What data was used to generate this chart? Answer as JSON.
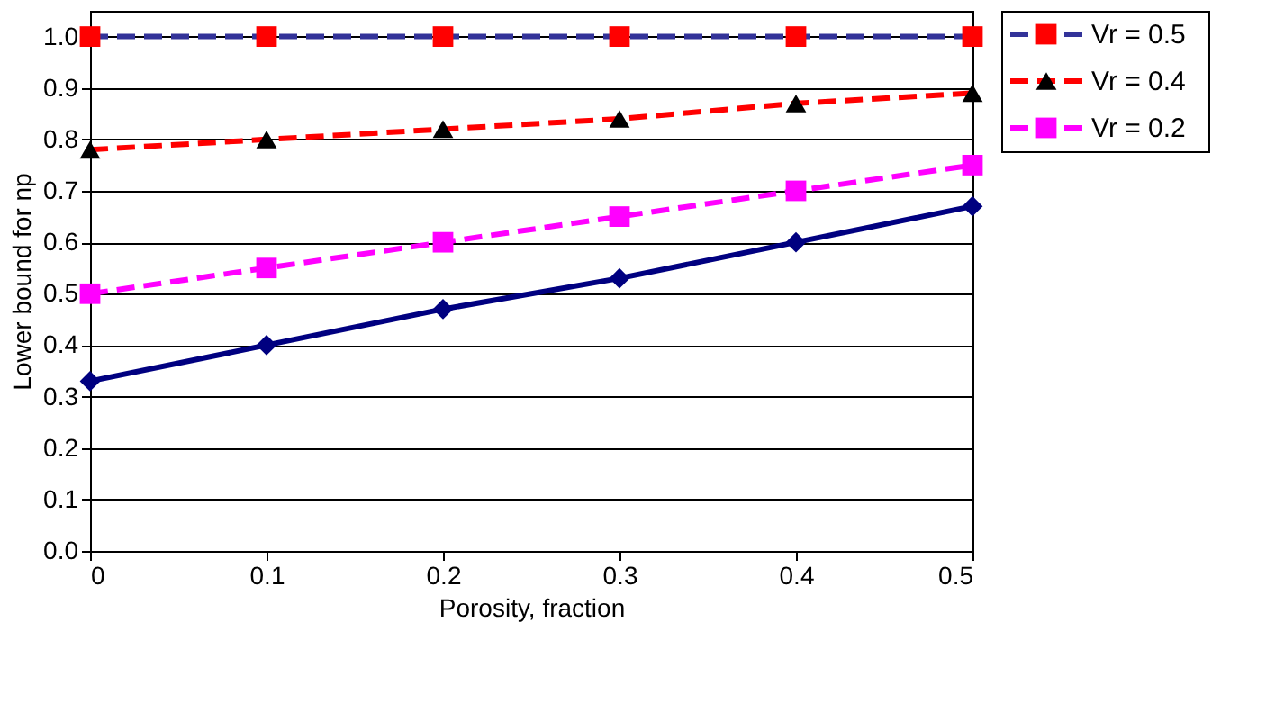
{
  "chart_data": {
    "type": "line",
    "xlabel": "Porosity, fraction",
    "ylabel": "Lower bound for np",
    "x": [
      0,
      0.1,
      0.2,
      0.3,
      0.4,
      0.5
    ],
    "series": [
      {
        "name": "Vr = 0.5",
        "color": "#333399",
        "colors": [
          "#ff0000",
          "#ff0000",
          "#ff0000",
          "#ff0000",
          "#ff0000",
          "#ff0000"
        ],
        "marker": "square",
        "line_style": "dashed",
        "values": [
          1.0,
          1.0,
          1.0,
          1.0,
          1.0,
          1.0
        ]
      },
      {
        "name": "Vr = 0.4",
        "color": "#ff0000",
        "colors": [
          "#000000",
          "#000000",
          "#000000",
          "#000000",
          "#000000",
          "#000000"
        ],
        "marker": "triangle",
        "line_style": "dashed",
        "values": [
          0.78,
          0.8,
          0.82,
          0.84,
          0.87,
          0.89
        ]
      },
      {
        "name": "Vr = 0.2",
        "color": "#ff00ff",
        "marker": "square",
        "line_style": "dashed",
        "values": [
          0.5,
          0.55,
          0.6,
          0.65,
          0.7,
          0.75
        ]
      },
      {
        "color": "#000080",
        "marker": "diamond",
        "line_style": "solid",
        "values": [
          0.33,
          0.4,
          0.47,
          0.53,
          0.6,
          0.67
        ]
      }
    ],
    "xlim": [
      0,
      0.5
    ],
    "xticks": [
      0,
      0.1,
      0.2,
      0.3,
      0.4,
      0.5
    ],
    "ylim": [
      0,
      1.05
    ],
    "yticks": [
      {
        "value": 0,
        "label": "0.0"
      },
      {
        "value": 0.1,
        "label": "0.1"
      },
      {
        "value": 0.2,
        "label": "0.2"
      },
      {
        "value": 0.3,
        "label": "0.3"
      },
      {
        "value": 0.4,
        "label": "0.4"
      },
      {
        "value": 0.5,
        "label": "0.5"
      },
      {
        "value": 0.6,
        "label": "0.6"
      },
      {
        "value": 0.7,
        "label": "0.7"
      },
      {
        "value": 0.8,
        "label": "0.8"
      },
      {
        "value": 0.9,
        "label": "0.9"
      },
      {
        "value": 1.0,
        "label": "1.0"
      }
    ],
    "grid": "y",
    "legend": "top right"
  }
}
